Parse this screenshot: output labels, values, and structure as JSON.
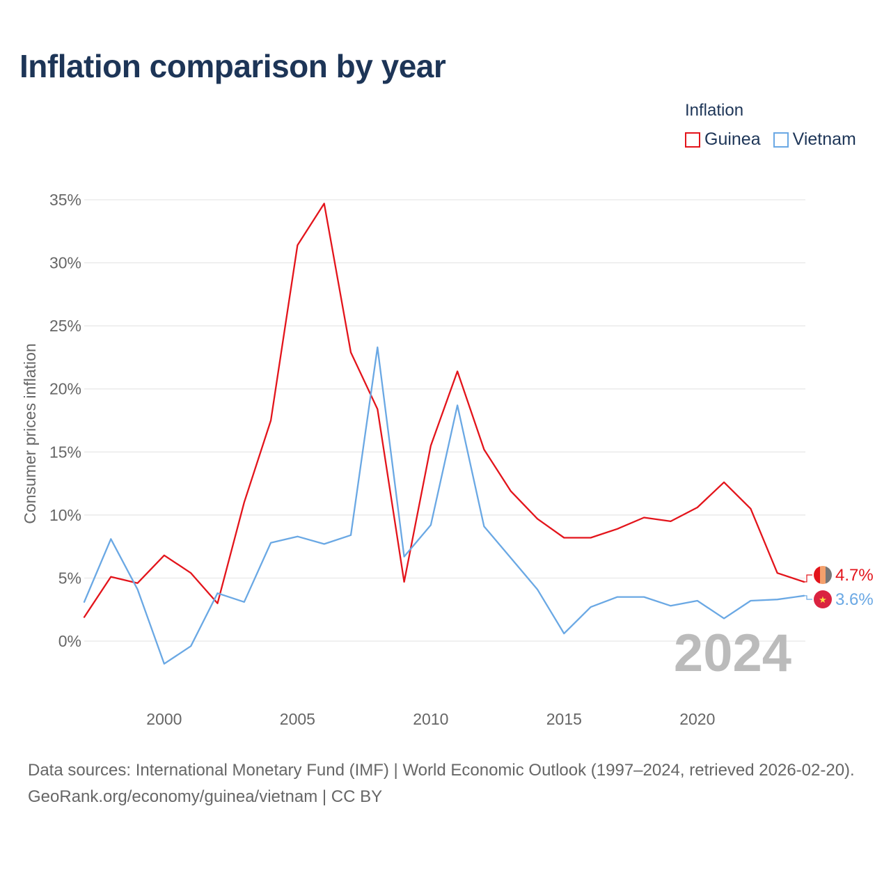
{
  "title": "Inflation comparison by year",
  "legend": {
    "title": "Inflation",
    "items": [
      {
        "name": "Guinea",
        "color": "#e3141b"
      },
      {
        "name": "Vietnam",
        "color": "#6aa8e4"
      }
    ]
  },
  "footer": {
    "sources": "Data sources: International Monetary Fund (IMF) | World Economic Outlook (1997–2024, retrieved 2026-02-20).",
    "credit": "GeoRank.org/economy/guinea/vietnam | CC BY"
  },
  "chart_data": {
    "type": "line",
    "title": "Inflation comparison by year",
    "xlabel": "",
    "ylabel": "Consumer prices inflation",
    "xlim": [
      1997,
      2024
    ],
    "ylim": [
      -5,
      37
    ],
    "x_ticks": [
      2000,
      2005,
      2010,
      2015,
      2020
    ],
    "y_ticks": [
      0,
      5,
      10,
      15,
      20,
      25,
      30,
      35
    ],
    "y_tick_labels": [
      "0%",
      "5%",
      "10%",
      "15%",
      "20%",
      "25%",
      "30%",
      "35%"
    ],
    "year_label": "2024",
    "grid": true,
    "legend_position": "top-right",
    "x": [
      1997,
      1998,
      1999,
      2000,
      2001,
      2002,
      2003,
      2004,
      2005,
      2006,
      2007,
      2008,
      2009,
      2010,
      2011,
      2012,
      2013,
      2014,
      2015,
      2016,
      2017,
      2018,
      2019,
      2020,
      2021,
      2022,
      2023,
      2024
    ],
    "series": [
      {
        "name": "Guinea",
        "color": "#e3141b",
        "end_label": "4.7%",
        "values": [
          1.9,
          5.1,
          4.6,
          6.8,
          5.4,
          3.0,
          11.0,
          17.5,
          31.4,
          34.7,
          22.9,
          18.4,
          4.7,
          15.5,
          21.4,
          15.2,
          11.9,
          9.7,
          8.2,
          8.2,
          8.9,
          9.8,
          9.5,
          10.6,
          12.6,
          10.5,
          5.4,
          4.7
        ]
      },
      {
        "name": "Vietnam",
        "color": "#6aa8e4",
        "end_label": "3.6%",
        "values": [
          3.1,
          8.1,
          4.1,
          -1.8,
          -0.4,
          3.8,
          3.1,
          7.8,
          8.3,
          7.7,
          8.4,
          23.3,
          6.7,
          9.2,
          18.7,
          9.1,
          6.6,
          4.1,
          0.6,
          2.7,
          3.5,
          3.5,
          2.8,
          3.2,
          1.8,
          3.2,
          3.3,
          3.6
        ]
      }
    ]
  }
}
